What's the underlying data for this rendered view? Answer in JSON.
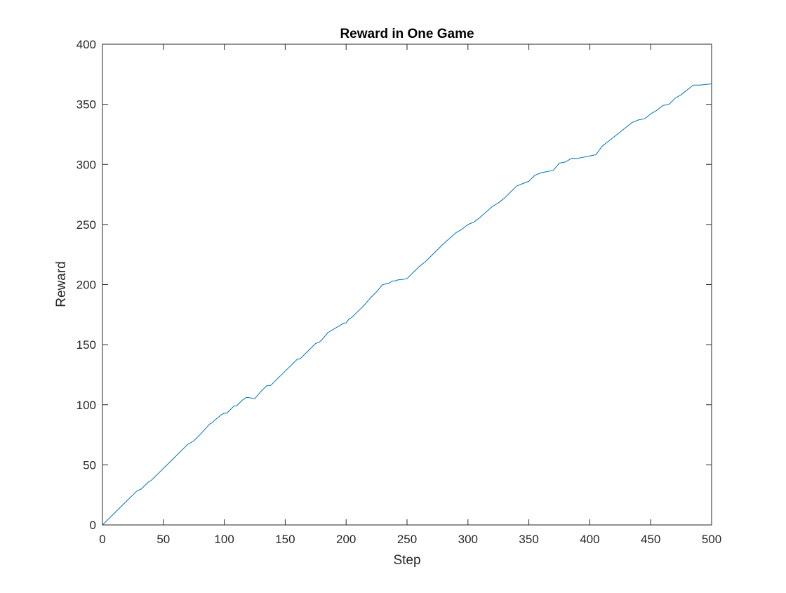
{
  "colors": {
    "series": "#0072bd",
    "axis": "#262626",
    "background": "#ffffff"
  },
  "chart_data": {
    "type": "line",
    "title": "Reward in One Game",
    "xlabel": "Step",
    "ylabel": "Reward",
    "xlim": [
      0,
      500
    ],
    "ylim": [
      0,
      400
    ],
    "xticks": [
      0,
      50,
      100,
      150,
      200,
      250,
      300,
      350,
      400,
      450,
      500
    ],
    "yticks": [
      0,
      50,
      100,
      150,
      200,
      250,
      300,
      350,
      400
    ],
    "grid": false,
    "box": true,
    "legend": "none",
    "series": [
      {
        "x": [
          0,
          10,
          20,
          28,
          30,
          32,
          35,
          38,
          40,
          50,
          60,
          70,
          75,
          80,
          88,
          90,
          92,
          98,
          100,
          102,
          105,
          108,
          110,
          112,
          115,
          118,
          120,
          125,
          130,
          135,
          138,
          140,
          150,
          158,
          160,
          162,
          170,
          175,
          178,
          180,
          185,
          190,
          195,
          198,
          200,
          202,
          205,
          210,
          215,
          220,
          225,
          230,
          235,
          238,
          240,
          243,
          245,
          250,
          252,
          260,
          265,
          270,
          280,
          290,
          295,
          300,
          305,
          310,
          320,
          325,
          330,
          335,
          340,
          345,
          350,
          355,
          360,
          365,
          370,
          375,
          380,
          385,
          390,
          395,
          400,
          405,
          410,
          415,
          420,
          425,
          430,
          435,
          440,
          445,
          450,
          455,
          460,
          465,
          470,
          475,
          480,
          485,
          490,
          500
        ],
        "y": [
          0,
          10,
          20,
          28,
          29,
          30,
          33,
          36,
          37,
          47,
          57,
          67,
          70,
          75,
          84,
          85,
          87,
          92,
          93,
          93,
          96,
          99,
          99,
          101,
          104,
          106,
          106,
          105,
          111,
          116,
          116,
          118,
          128,
          136,
          138,
          138,
          146,
          151,
          152,
          154,
          160,
          163,
          166,
          168,
          168,
          171,
          173,
          178,
          183,
          189,
          194,
          200,
          201,
          203,
          203,
          204,
          204,
          205,
          207,
          215,
          219,
          224,
          234,
          243,
          246,
          250,
          252,
          256,
          265,
          268,
          272,
          277,
          282,
          284,
          286,
          291,
          293,
          294,
          295,
          301,
          302,
          305,
          305,
          306,
          307,
          308,
          315,
          319,
          323,
          327,
          331,
          335,
          337,
          338,
          342,
          345,
          349,
          350,
          355,
          358,
          362,
          366,
          366,
          367
        ]
      }
    ]
  }
}
